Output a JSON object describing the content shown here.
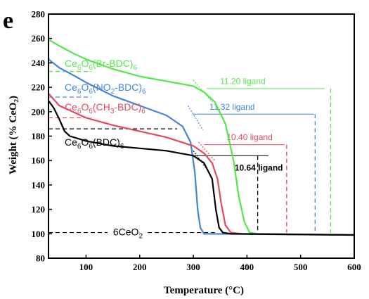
{
  "panel_label": "e",
  "chart_data": {
    "type": "line",
    "xlabel": "Temperature (°C)",
    "ylabel": "Weight (% CeO₂)",
    "xlim": [
      30,
      600
    ],
    "ylim": [
      80,
      280
    ],
    "xticks": [
      "100",
      "200",
      "300",
      "400",
      "500",
      "600"
    ],
    "yticks": [
      "80",
      "100",
      "120",
      "140",
      "160",
      "180",
      "200",
      "220",
      "240",
      "260",
      "280"
    ],
    "colors": {
      "Br": "#53e84a",
      "NO2": "#3d86db",
      "CH3": "#e8465f",
      "BDC": "#000000"
    },
    "series_labels": {
      "Br": {
        "main": "Ce",
        "s1": "6",
        "mid": "O",
        "s2": "6",
        "rest": "(Br-BDC)",
        "s3": "6"
      },
      "NO2": {
        "main": "Ce",
        "s1": "6",
        "mid": "O",
        "s2": "6",
        "pre": "(NO",
        "s4": "2",
        "rest": "-BDC)",
        "s3": "6"
      },
      "CH3": {
        "main": "Ce",
        "s1": "6",
        "mid": "O",
        "s2": "6",
        "pre": "(CH",
        "s4": "3",
        "rest": "-BDC)",
        "s3": "6"
      },
      "BDC": {
        "main": "Ce",
        "s1": "6",
        "mid": "O",
        "s2": "6",
        "rest": "(BDC)",
        "s3": "6"
      }
    },
    "series": [
      {
        "key": "Br",
        "values": [
          [
            30,
            259
          ],
          [
            50,
            254
          ],
          [
            80,
            247
          ],
          [
            100,
            243
          ],
          [
            150,
            235
          ],
          [
            200,
            229
          ],
          [
            250,
            225
          ],
          [
            300,
            221
          ],
          [
            320,
            216
          ],
          [
            340,
            208
          ],
          [
            360,
            190
          ],
          [
            375,
            160
          ],
          [
            385,
            130
          ],
          [
            395,
            110
          ],
          [
            405,
            101
          ],
          [
            420,
            100
          ],
          [
            600,
            99
          ]
        ]
      },
      {
        "key": "NO2",
        "values": [
          [
            30,
            243
          ],
          [
            50,
            236
          ],
          [
            80,
            229
          ],
          [
            100,
            224
          ],
          [
            150,
            213
          ],
          [
            200,
            205
          ],
          [
            250,
            197
          ],
          [
            280,
            188
          ],
          [
            295,
            175
          ],
          [
            303,
            150
          ],
          [
            308,
            120
          ],
          [
            313,
            105
          ],
          [
            320,
            100
          ],
          [
            600,
            99
          ]
        ]
      },
      {
        "key": "CH3",
        "values": [
          [
            30,
            215
          ],
          [
            50,
            205
          ],
          [
            80,
            199
          ],
          [
            100,
            195
          ],
          [
            150,
            189
          ],
          [
            200,
            184
          ],
          [
            250,
            179
          ],
          [
            300,
            172
          ],
          [
            320,
            166
          ],
          [
            335,
            158
          ],
          [
            345,
            145
          ],
          [
            352,
            125
          ],
          [
            360,
            107
          ],
          [
            370,
            101
          ],
          [
            390,
            100
          ],
          [
            600,
            99
          ]
        ]
      },
      {
        "key": "BDC",
        "values": [
          [
            30,
            209
          ],
          [
            40,
            203
          ],
          [
            50,
            194
          ],
          [
            60,
            184
          ],
          [
            70,
            180
          ],
          [
            100,
            176
          ],
          [
            150,
            172
          ],
          [
            200,
            170
          ],
          [
            250,
            168
          ],
          [
            300,
            164
          ],
          [
            320,
            158
          ],
          [
            335,
            145
          ],
          [
            342,
            120
          ],
          [
            348,
            105
          ],
          [
            355,
            101
          ],
          [
            370,
            100
          ],
          [
            600,
            99
          ]
        ]
      }
    ],
    "annotations": [
      {
        "key": "Br",
        "text": "11.20 ligand",
        "hline_y": 219,
        "hline_x": [
          325,
          545
        ],
        "vline_x": 556,
        "baseline_y": 233,
        "baseline_x": [
          30,
          110
        ],
        "label_x": 350,
        "label_y": 221
      },
      {
        "key": "NO2",
        "text": "11.32 ligand",
        "hline_y": 198,
        "hline_x": [
          300,
          525
        ],
        "vline_x": 527,
        "baseline_y": 212,
        "baseline_x": [
          30,
          110
        ],
        "label_x": 330,
        "label_y": 200
      },
      {
        "key": "CH3",
        "text": "10.40 ligand",
        "hline_y": 173,
        "hline_x": [
          320,
          470
        ],
        "vline_x": 474,
        "baseline_y": 195,
        "baseline_x": [
          30,
          110
        ],
        "label_x": 362,
        "label_y": 175
      },
      {
        "key": "BDC",
        "text": "10.64 ligand",
        "hline_y": 164,
        "hline_x": [
          300,
          440
        ],
        "vline_x": 420,
        "baseline_y": 186,
        "baseline_x": [
          30,
          270
        ],
        "label_x": 377,
        "label_y": 150
      }
    ],
    "ceo2_label": "6CeO",
    "ceo2_sub": "2",
    "ceo2_y": 101
  }
}
